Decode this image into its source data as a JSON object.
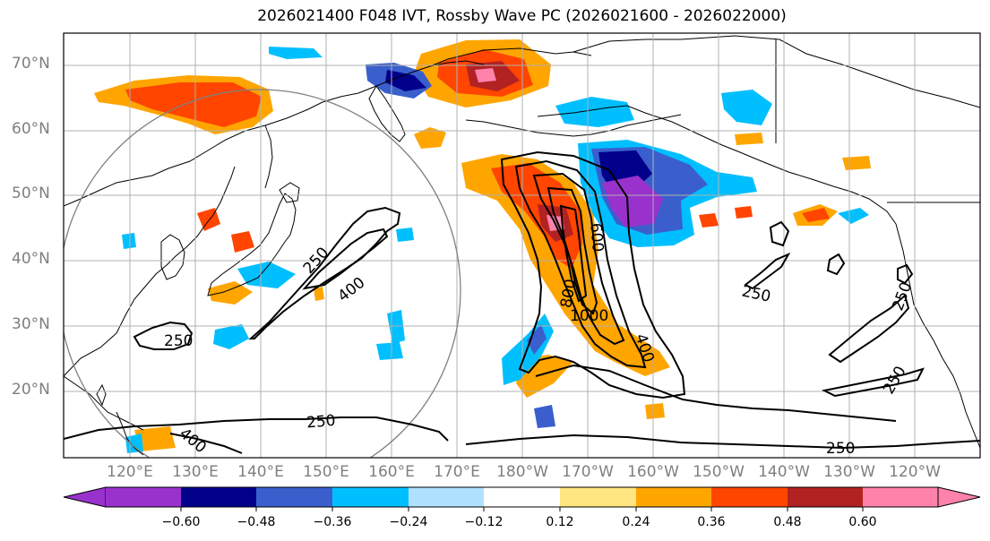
{
  "title": "2026021400 F048 IVT, Rossby Wave PC (2026021600 - 2026022000)",
  "lat_labels": [
    "70°N",
    "60°N",
    "50°N",
    "40°N",
    "30°N",
    "20°N"
  ],
  "lon_labels": [
    "120°E",
    "130°E",
    "140°E",
    "150°E",
    "160°E",
    "170°E",
    "180°W",
    "170°W",
    "160°W",
    "150°W",
    "140°W",
    "130°W",
    "120°W"
  ],
  "contour_labels": {
    "c250_left": "250",
    "c400_west": "400",
    "c250_japan": "250",
    "c250_south": "250",
    "c400_south": "400",
    "c800": "800",
    "c1000": "1000",
    "c600": "600",
    "c400_east": "400",
    "c250_east_a": "250",
    "c250_east_b": "250",
    "c250_east_c": "250",
    "c250_bottom": "250"
  },
  "colorbar": {
    "ticks": [
      "−0.60",
      "−0.48",
      "−0.36",
      "−0.24",
      "−0.12",
      "0.12",
      "0.24",
      "0.36",
      "0.48",
      "0.60"
    ],
    "colors": [
      "#9932cc",
      "#00008b",
      "#3a5fcd",
      "#00bfff",
      "#b0e2ff",
      "#ffffff",
      "#ffe680",
      "#ffa500",
      "#ff4500",
      "#b22222",
      "#ff82ab"
    ]
  }
}
